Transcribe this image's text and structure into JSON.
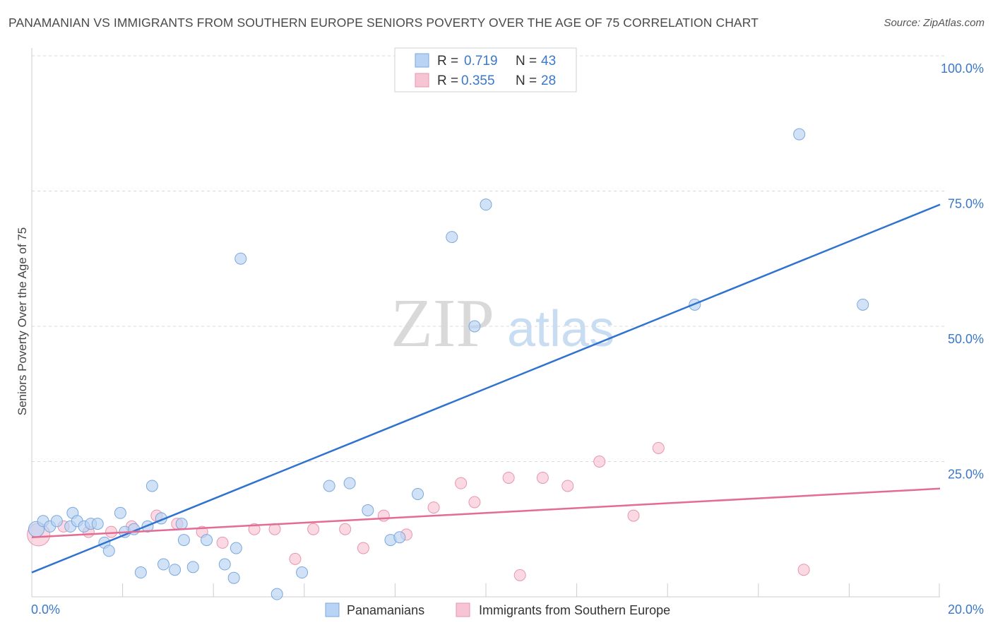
{
  "title": "PANAMANIAN VS IMMIGRANTS FROM SOUTHERN EUROPE SENIORS POVERTY OVER THE AGE OF 75 CORRELATION CHART",
  "source": "Source: ZipAtlas.com",
  "watermark": {
    "zip": "ZIP",
    "atlas": "atlas"
  },
  "colors": {
    "blue": "#3b78c9",
    "blue_fill": "#b8d3f3",
    "blue_line": "#2f72d0",
    "pink_fill": "#f7c4d3",
    "pink_line": "#e46b93",
    "grid": "#d8d8d8"
  },
  "legend": {
    "r_label": "R =",
    "n_label": "N =",
    "rows": [
      {
        "r": "0.719",
        "n": "43"
      },
      {
        "r": "0.355",
        "n": "28"
      }
    ]
  },
  "chart_data": {
    "type": "scatter",
    "title": "PANAMANIAN VS IMMIGRANTS FROM SOUTHERN EUROPE SENIORS POVERTY OVER THE AGE OF 75 CORRELATION CHART",
    "xlabel": "",
    "ylabel": "Seniors Poverty Over the Age of 75",
    "xlim": [
      0,
      20
    ],
    "ylim": [
      0,
      100
    ],
    "x_tick_labels": [
      "0.0%",
      "20.0%"
    ],
    "y_ticks": [
      25,
      50,
      75,
      100
    ],
    "y_tick_labels": [
      "25.0%",
      "50.0%",
      "75.0%",
      "100.0%"
    ],
    "series": [
      {
        "name": "Panamanians",
        "points": [
          [
            0.1,
            12.5
          ],
          [
            0.25,
            14
          ],
          [
            0.4,
            13
          ],
          [
            0.55,
            14
          ],
          [
            0.85,
            13
          ],
          [
            0.9,
            15.5
          ],
          [
            1.0,
            14
          ],
          [
            1.15,
            13
          ],
          [
            1.3,
            13.5
          ],
          [
            1.45,
            13.5
          ],
          [
            1.6,
            10
          ],
          [
            1.7,
            8.5
          ],
          [
            1.95,
            15.5
          ],
          [
            2.05,
            12
          ],
          [
            2.25,
            12.5
          ],
          [
            2.4,
            4.5
          ],
          [
            2.55,
            13
          ],
          [
            2.65,
            20.5
          ],
          [
            2.85,
            14.5
          ],
          [
            2.9,
            6
          ],
          [
            3.15,
            5
          ],
          [
            3.3,
            13.5
          ],
          [
            3.35,
            10.5
          ],
          [
            3.55,
            5.5
          ],
          [
            3.85,
            10.5
          ],
          [
            4.25,
            6
          ],
          [
            4.45,
            3.5
          ],
          [
            4.5,
            9
          ],
          [
            4.6,
            62.5
          ],
          [
            5.4,
            0.5
          ],
          [
            5.95,
            4.5
          ],
          [
            6.55,
            20.5
          ],
          [
            7.0,
            21
          ],
          [
            7.4,
            16
          ],
          [
            7.9,
            10.5
          ],
          [
            8.1,
            11
          ],
          [
            8.5,
            19
          ],
          [
            9.25,
            66.5
          ],
          [
            9.75,
            50
          ],
          [
            10.0,
            72.5
          ],
          [
            14.6,
            54
          ],
          [
            16.9,
            85.5
          ],
          [
            18.3,
            54
          ]
        ],
        "trendline": {
          "x": [
            0,
            20
          ],
          "y": [
            4.5,
            72.5
          ]
        }
      },
      {
        "name": "Immigrants from Southern Europe",
        "points": [
          [
            0.15,
            11.5
          ],
          [
            0.7,
            13
          ],
          [
            1.25,
            12
          ],
          [
            1.75,
            12
          ],
          [
            2.2,
            13
          ],
          [
            2.75,
            15
          ],
          [
            3.2,
            13.5
          ],
          [
            3.75,
            12
          ],
          [
            4.2,
            10
          ],
          [
            4.9,
            12.5
          ],
          [
            5.35,
            12.5
          ],
          [
            5.8,
            7
          ],
          [
            6.2,
            12.5
          ],
          [
            6.9,
            12.5
          ],
          [
            7.3,
            9
          ],
          [
            7.75,
            15
          ],
          [
            8.25,
            11.5
          ],
          [
            8.85,
            16.5
          ],
          [
            9.45,
            21
          ],
          [
            9.75,
            17.5
          ],
          [
            10.5,
            22
          ],
          [
            10.75,
            4
          ],
          [
            11.25,
            22
          ],
          [
            11.8,
            20.5
          ],
          [
            12.5,
            25
          ],
          [
            13.25,
            15
          ],
          [
            13.8,
            27.5
          ],
          [
            17.0,
            5
          ]
        ],
        "trendline": {
          "x": [
            0,
            20
          ],
          "y": [
            11,
            20
          ]
        }
      }
    ]
  },
  "bottom_legend": [
    {
      "label": "Panamanians"
    },
    {
      "label": "Immigrants from Southern Europe"
    }
  ]
}
